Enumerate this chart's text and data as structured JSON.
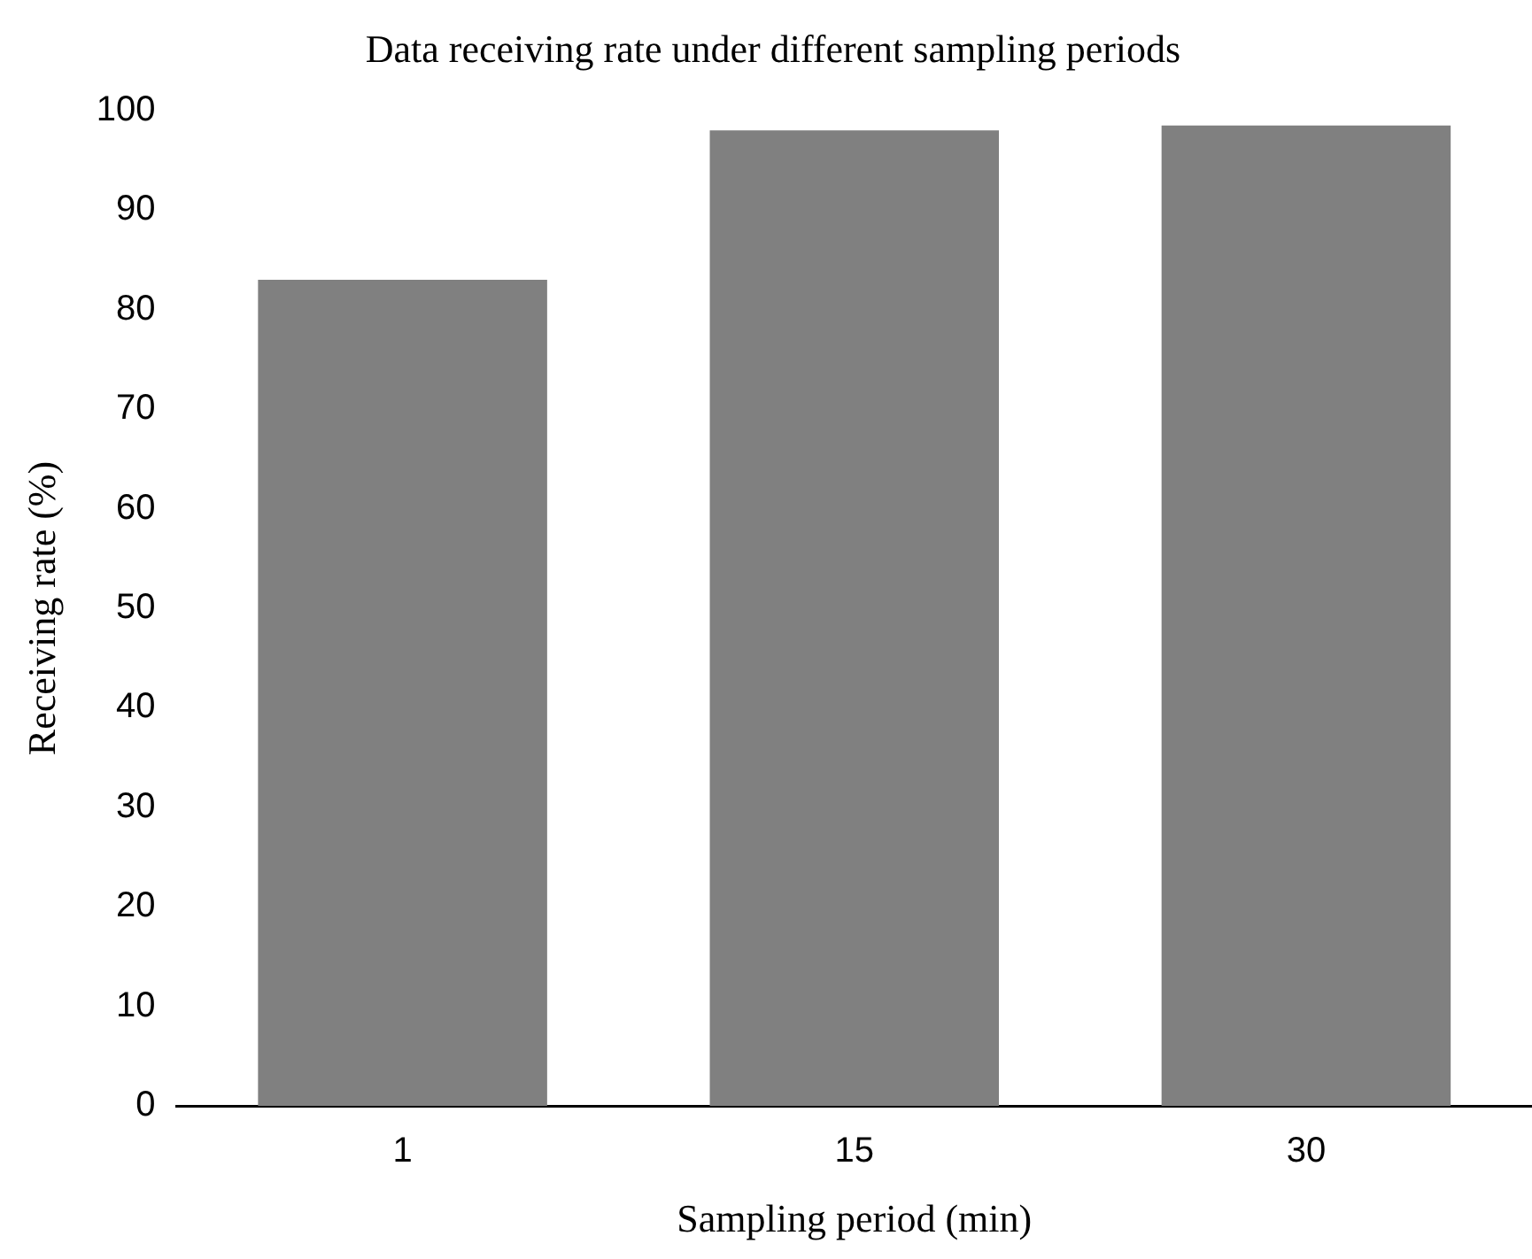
{
  "chart_data": {
    "type": "bar",
    "title": "Data receiving rate under different sampling periods",
    "xlabel": "Sampling period (min)",
    "ylabel": "Receiving rate (%)",
    "categories": [
      "1",
      "15",
      "30"
    ],
    "values": [
      83,
      98,
      98.5
    ],
    "color": "#808080",
    "ylim": [
      0,
      100
    ],
    "yticks": [
      0,
      10,
      20,
      30,
      40,
      50,
      60,
      70,
      80,
      90,
      100
    ],
    "grid": false,
    "legend": false
  }
}
